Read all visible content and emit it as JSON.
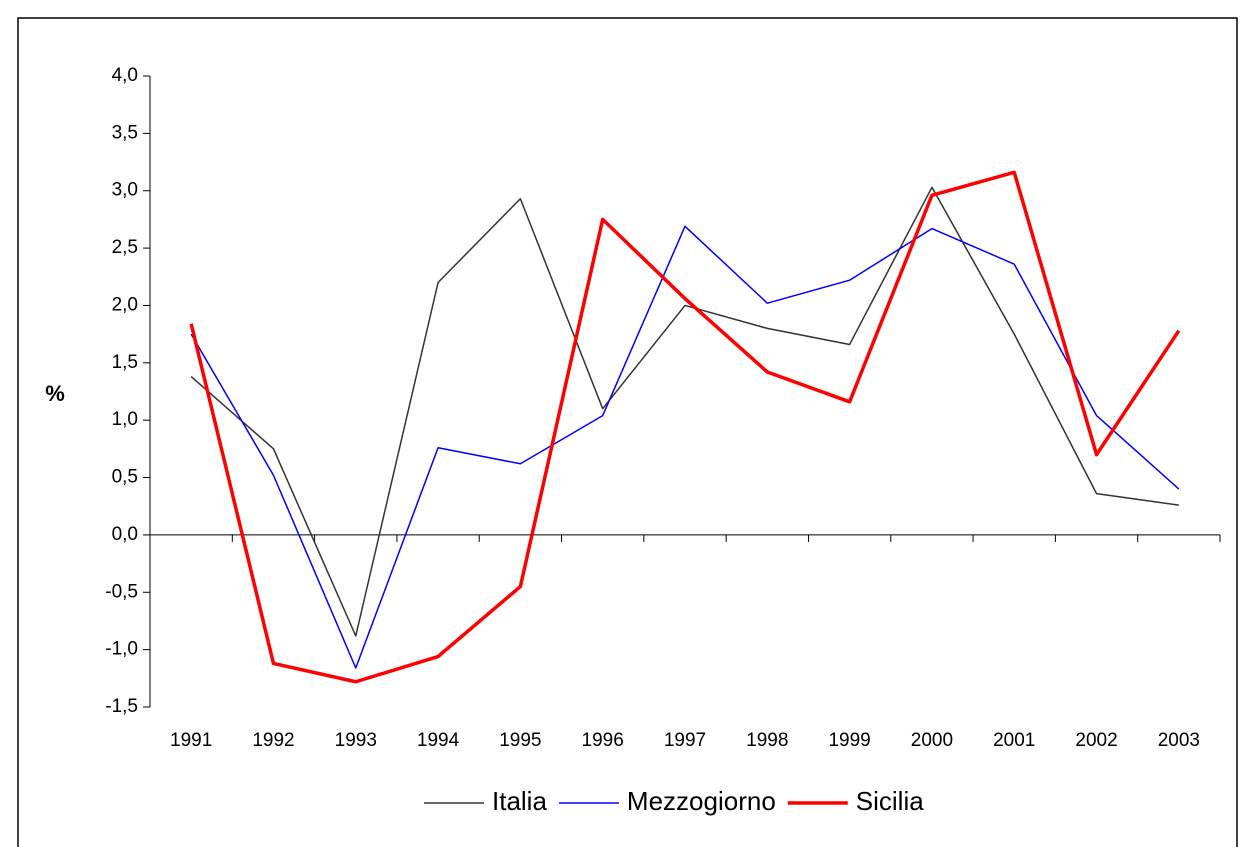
{
  "chart_data": {
    "type": "line",
    "ylabel": "%",
    "categories": [
      "1991",
      "1992",
      "1993",
      "1994",
      "1995",
      "1996",
      "1997",
      "1998",
      "1999",
      "2000",
      "2001",
      "2002",
      "2003"
    ],
    "series": [
      {
        "name": "Italia",
        "color": "#333333",
        "width": 1.5,
        "values": [
          1.38,
          0.75,
          -0.88,
          2.2,
          2.93,
          1.1,
          2.0,
          1.8,
          1.66,
          3.03,
          1.75,
          0.36,
          0.26
        ]
      },
      {
        "name": "Mezzogiorno",
        "color": "#0000ff",
        "width": 1.5,
        "values": [
          1.75,
          0.52,
          -1.16,
          0.76,
          0.62,
          1.04,
          2.69,
          2.02,
          2.22,
          2.67,
          2.36,
          1.04,
          0.4
        ]
      },
      {
        "name": "Sicilia",
        "color": "#ff0000",
        "width": 3.5,
        "values": [
          1.84,
          -1.12,
          -1.28,
          -1.06,
          -0.45,
          2.75,
          2.06,
          1.42,
          1.16,
          2.96,
          3.16,
          0.7,
          1.78
        ]
      }
    ],
    "ylim": [
      -1.5,
      4.0
    ],
    "yticks": [
      {
        "value": -1.5,
        "label": "-1,5"
      },
      {
        "value": -1.0,
        "label": "-1,0"
      },
      {
        "value": -0.5,
        "label": "-0,5"
      },
      {
        "value": 0,
        "label": "0,0"
      },
      {
        "value": 0.5,
        "label": "0,5"
      },
      {
        "value": 1.0,
        "label": "1,0"
      },
      {
        "value": 1.5,
        "label": "1,5"
      },
      {
        "value": 2.0,
        "label": "2,0"
      },
      {
        "value": 2.5,
        "label": "2,5"
      },
      {
        "value": 3.0,
        "label": "3,0"
      },
      {
        "value": 3.5,
        "label": "3,5"
      },
      {
        "value": 4.0,
        "label": "4,0"
      }
    ],
    "legend": "bottom"
  }
}
